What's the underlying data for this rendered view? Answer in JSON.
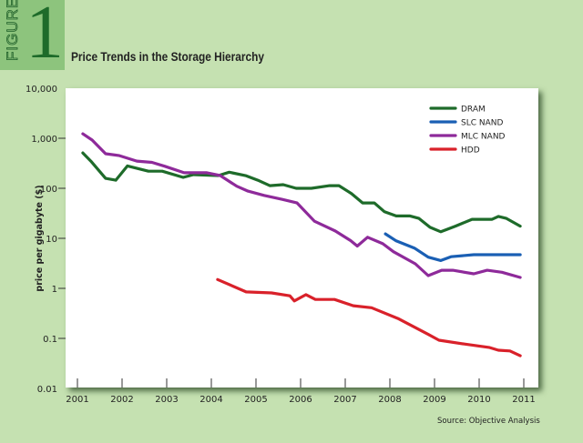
{
  "figure": {
    "word": "FIGURE",
    "number": "1"
  },
  "source": "Source: Objective Analysis",
  "colors": {
    "DRAM": "#1e6b2a",
    "SLC NAND": "#1a5fb4",
    "MLC NAND": "#8e2a9a",
    "HDD": "#d9212a"
  },
  "chart_data": {
    "type": "line",
    "title": "Price Trends in the Storage Hierarchy",
    "xlabel": "",
    "ylabel": "price per gigabyte ($)",
    "yscale": "log",
    "xlim": [
      2001,
      2011
    ],
    "ylim": [
      0.01,
      10000
    ],
    "x_ticks": [
      "2001",
      "2002",
      "2003",
      "2004",
      "2005",
      "2006",
      "2007",
      "2008",
      "2009",
      "2010",
      "2011"
    ],
    "y_ticks": [
      {
        "value": 10000,
        "label": "10,000"
      },
      {
        "value": 1000,
        "label": "1,000"
      },
      {
        "value": 100,
        "label": "100"
      },
      {
        "value": 10,
        "label": "10"
      },
      {
        "value": 1,
        "label": "1"
      },
      {
        "value": 0.1,
        "label": "0.1"
      },
      {
        "value": 0.01,
        "label": "0.01"
      }
    ],
    "grid": false,
    "legend_position": "top-right",
    "series": [
      {
        "name": "DRAM",
        "x": [
          2001.12,
          2001.3,
          2001.63,
          2001.86,
          2002.12,
          2002.59,
          2002.9,
          2003.37,
          2003.6,
          2004.16,
          2004.4,
          2004.78,
          2005.04,
          2005.31,
          2005.61,
          2005.9,
          2006.24,
          2006.65,
          2006.86,
          2007.14,
          2007.39,
          2007.65,
          2007.88,
          2008.14,
          2008.45,
          2008.65,
          2008.9,
          2009.14,
          2009.47,
          2009.84,
          2010.29,
          2010.43,
          2010.61,
          2010.92
        ],
        "y": [
          510,
          350,
          158,
          145,
          280,
          220,
          220,
          165,
          187,
          180,
          210,
          178,
          145,
          113,
          118,
          100,
          100,
          113,
          113,
          78,
          51,
          51,
          34,
          28,
          28,
          25,
          16.6,
          13.5,
          17.5,
          24,
          24,
          27.4,
          25,
          17.5
        ]
      },
      {
        "name": "SLC NAND",
        "x": [
          2007.9,
          2008.14,
          2008.55,
          2008.86,
          2009.14,
          2009.37,
          2009.88,
          2010.39,
          2010.92
        ],
        "y": [
          12.3,
          8.9,
          6.4,
          4.2,
          3.6,
          4.3,
          4.7,
          4.7,
          4.7
        ]
      },
      {
        "name": "MLC NAND",
        "x": [
          2001.12,
          2001.33,
          2001.63,
          2001.94,
          2002.33,
          2002.67,
          2002.96,
          2003.39,
          2003.9,
          2004.2,
          2004.57,
          2004.82,
          2005.18,
          2005.59,
          2005.92,
          2006.31,
          2006.78,
          2007.12,
          2007.27,
          2007.5,
          2007.84,
          2008.08,
          2008.57,
          2008.86,
          2009.16,
          2009.41,
          2009.88,
          2010.18,
          2010.51,
          2010.92
        ],
        "y": [
          1230,
          920,
          490,
          450,
          350,
          330,
          275,
          205,
          205,
          180,
          110,
          88,
          72,
          60,
          51,
          22,
          14,
          9,
          7,
          10.5,
          7.8,
          5.4,
          3.1,
          1.8,
          2.3,
          2.3,
          1.95,
          2.3,
          2.1,
          1.65
        ]
      },
      {
        "name": "HDD",
        "x": [
          2004.14,
          2004.78,
          2005.35,
          2005.76,
          2005.86,
          2006.12,
          2006.33,
          2006.76,
          2007.18,
          2007.59,
          2008.18,
          2008.86,
          2009.1,
          2009.67,
          2010.22,
          2010.43,
          2010.69,
          2010.92
        ],
        "y": [
          1.5,
          0.85,
          0.81,
          0.71,
          0.56,
          0.75,
          0.6,
          0.6,
          0.45,
          0.41,
          0.25,
          0.12,
          0.092,
          0.077,
          0.066,
          0.058,
          0.056,
          0.045
        ]
      }
    ]
  }
}
